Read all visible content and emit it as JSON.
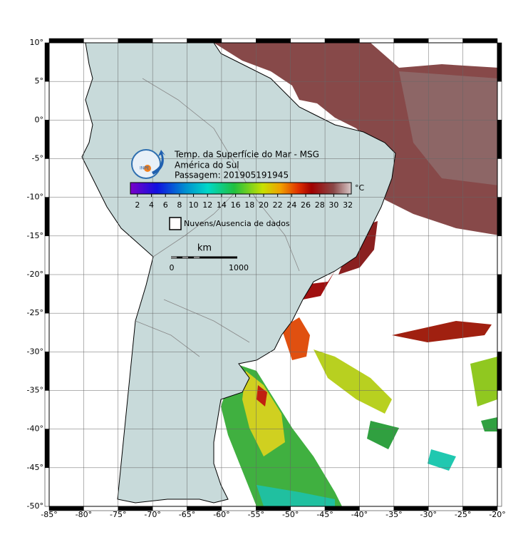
{
  "map": {
    "title": "Temp. da Superfície do Mar - MSG",
    "region": "América do Sul",
    "pass": "Passagem: 201905191945",
    "logo_text": "INPE",
    "lon_range": [
      -85,
      -20
    ],
    "lat_range": [
      -50,
      10
    ],
    "lon_ticks": [
      {
        "value": -85,
        "label": "-85°"
      },
      {
        "value": -80,
        "label": "-80°"
      },
      {
        "value": -75,
        "label": "-75°"
      },
      {
        "value": -70,
        "label": "-70°"
      },
      {
        "value": -65,
        "label": "-65°"
      },
      {
        "value": -60,
        "label": "-60°"
      },
      {
        "value": -55,
        "label": "-55°"
      },
      {
        "value": -50,
        "label": "-50°"
      },
      {
        "value": -45,
        "label": "-45°"
      },
      {
        "value": -40,
        "label": "-40°"
      },
      {
        "value": -35,
        "label": "-35°"
      },
      {
        "value": -30,
        "label": "-30°"
      },
      {
        "value": -25,
        "label": "-25°"
      },
      {
        "value": -20,
        "label": "-20°"
      }
    ],
    "lat_ticks": [
      {
        "value": 10,
        "label": "10°"
      },
      {
        "value": 5,
        "label": "5°"
      },
      {
        "value": 0,
        "label": "0°"
      },
      {
        "value": -5,
        "label": "-5°"
      },
      {
        "value": -10,
        "label": "-10°"
      },
      {
        "value": -15,
        "label": "-15°"
      },
      {
        "value": -20,
        "label": "-20°"
      },
      {
        "value": -25,
        "label": "-25°"
      },
      {
        "value": -30,
        "label": "-30°"
      },
      {
        "value": -35,
        "label": "-35°"
      },
      {
        "value": -40,
        "label": "-40°"
      },
      {
        "value": -45,
        "label": "-45°"
      },
      {
        "value": -50,
        "label": "-50°"
      }
    ],
    "colorbar": {
      "range": [
        1,
        32.5
      ],
      "ticks": [
        2,
        4,
        6,
        8,
        10,
        12,
        14,
        16,
        18,
        20,
        22,
        24,
        26,
        28,
        30,
        32
      ],
      "unit": "°C"
    },
    "legend": "Nuvens/Ausencia de dados",
    "scale": {
      "unit": "km",
      "start": "0",
      "end": "1000"
    }
  }
}
